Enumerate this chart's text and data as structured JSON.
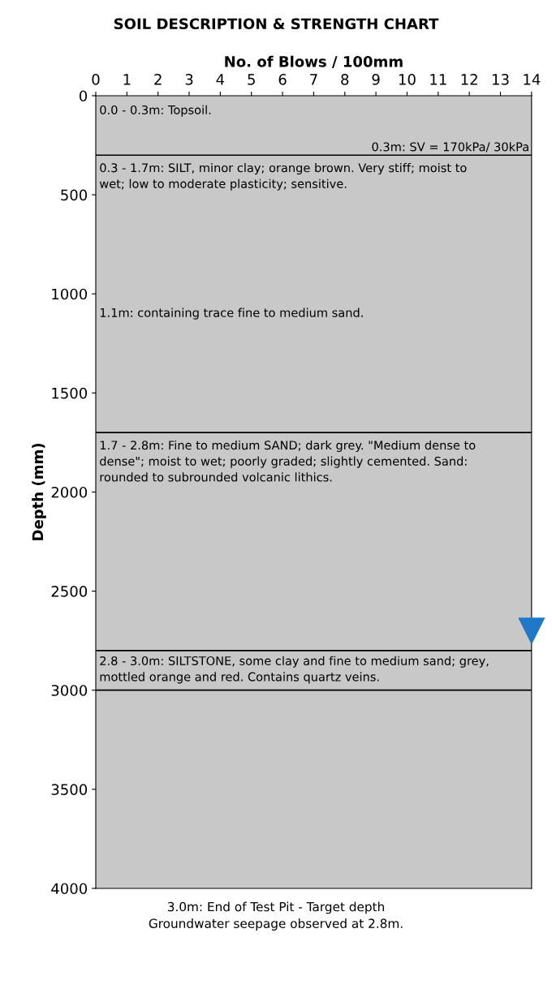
{
  "chart_data": {
    "type": "scatter",
    "title": "SOIL DESCRIPTION & STRENGTH CHART",
    "xlabel": "No. of Blows / 100mm",
    "ylabel": "Depth (mm)",
    "xlim": [
      0,
      14
    ],
    "xticks": [
      0,
      1,
      2,
      3,
      4,
      5,
      6,
      7,
      8,
      9,
      10,
      11,
      12,
      13,
      14
    ],
    "ylim": [
      4000,
      0
    ],
    "yticks": [
      0,
      500,
      1000,
      1500,
      2000,
      2500,
      3000,
      3500,
      4000
    ],
    "series": [
      {
        "marker": "triangle",
        "color": "#1f78c8",
        "x": [
          14
        ],
        "values": [
          2700
        ]
      }
    ],
    "ref_lines": [
      {
        "axis": "y",
        "value": 300,
        "color": "#000000"
      },
      {
        "axis": "y",
        "value": 1700,
        "color": "#000000"
      },
      {
        "axis": "y",
        "value": 2800,
        "color": "#000000"
      },
      {
        "axis": "y",
        "value": 3000,
        "color": "#000000"
      }
    ],
    "annotations": [
      "0.0 - 0.3m: Topsoil.",
      "0.3m: SV = 170kPa/ 30kPa",
      "0.3 - 1.7m: SILT, minor clay; orange brown. Very stiff; moist to\nwet; low to moderate plasticity; sensitive.",
      "1.1m: containing trace fine to medium sand.",
      "1.7 - 2.8m: Fine to medium SAND; dark grey. \"Medium dense to\ndense\"; moist to wet; poorly graded; slightly cemented. Sand:\nrounded to subrounded volcanic lithics.",
      "2.8 - 3.0m: SILTSTONE, some clay and fine to medium sand; grey,\nmottled orange and red. Contains quartz veins.",
      "3.0m: End of Test Pit - Target depth\nGroundwater seepage observed at 2.8m."
    ]
  }
}
